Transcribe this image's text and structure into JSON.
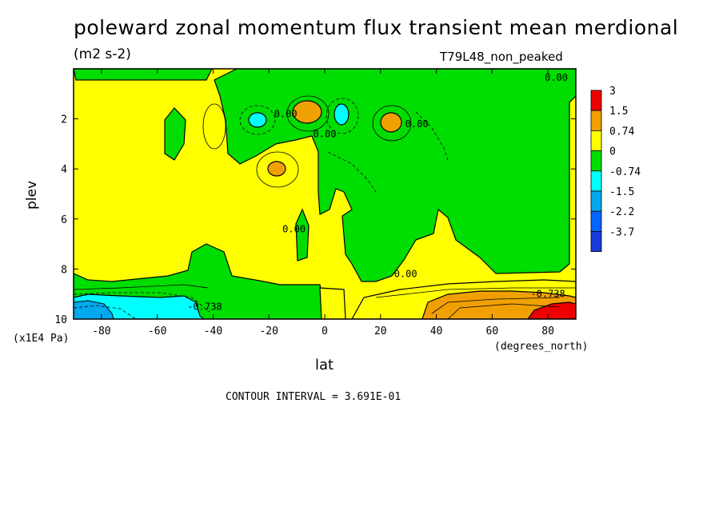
{
  "chart_data": {
    "type": "heatmap",
    "title": "poleward zonal momentum flux transient mean merdional",
    "units": "(m2 s-2)",
    "run_label": "T79L48_non_peaked",
    "xlabel": "lat",
    "ylabel": "plev",
    "x_units": "(degrees_north)",
    "y_units": "(x1E4 Pa)",
    "xlim": [
      -90,
      90
    ],
    "ylim": [
      10,
      0
    ],
    "x_ticks": [
      "-80",
      "-60",
      "-40",
      "-20",
      "0",
      "20",
      "40",
      "60",
      "80"
    ],
    "x_tick_values": [
      -80,
      -60,
      -40,
      -20,
      0,
      20,
      40,
      60,
      80
    ],
    "y_ticks": [
      "2",
      "4",
      "6",
      "8",
      "10"
    ],
    "y_tick_values": [
      2,
      4,
      6,
      8,
      10
    ],
    "contour_interval_text": "CONTOUR INTERVAL = 3.691E-01",
    "contour_labels": [
      {
        "text": "0.00",
        "lat": 83,
        "plev": 0.35
      },
      {
        "text": "0.00",
        "lat": -14,
        "plev": 1.8
      },
      {
        "text": "0.00",
        "lat": 0,
        "plev": 2.6
      },
      {
        "text": "0.00",
        "lat": 33,
        "plev": 2.2
      },
      {
        "text": "0.00",
        "lat": -11,
        "plev": 6.4
      },
      {
        "text": "0.00",
        "lat": 29,
        "plev": 8.2
      },
      {
        "text": "-0.738",
        "lat": -43,
        "plev": 9.5
      },
      {
        "text": "-0.738",
        "lat": 80,
        "plev": 9.0
      }
    ],
    "legend": {
      "labels": [
        "3",
        "1.5",
        "0.74",
        "0",
        "-0.74",
        "-1.5",
        "-2.2",
        "-3.7"
      ],
      "colors": [
        "#ee0000",
        "#f0a000",
        "#ffff00",
        "#00dd00",
        "#00ffff",
        "#00a8ee",
        "#0066ff",
        "#1a3cdd"
      ]
    },
    "regions": [
      {
        "value": "0 to 0.74",
        "color": "#ffff00",
        "lat_range": [
          -90,
          0
        ],
        "plev_range": [
          0.3,
          8.5
        ]
      },
      {
        "value": "-0.74 to 0",
        "color": "#00dd00",
        "lat_range": [
          0,
          90
        ],
        "plev_range": [
          0.2,
          8.0
        ]
      },
      {
        "value": "0.74 to 1.5",
        "color": "#f0a000",
        "lat": -3,
        "plev": 1.9
      },
      {
        "value": "0.74 to 1.5",
        "color": "#f0a000",
        "lat": -17,
        "plev": 4.0
      },
      {
        "value": "0.74 to 1.5",
        "color": "#f0a000",
        "lat": 24,
        "plev": 2.3
      },
      {
        "value": "0.74 to 1.5",
        "color": "#f0a000",
        "lat": 60,
        "plev": 9.5
      },
      {
        "value": "1.5 to 3",
        "color": "#ee0000",
        "lat": 82,
        "plev": 9.7
      },
      {
        "value": "-1.5 to -0.74",
        "color": "#00ffff",
        "lat": -25,
        "plev": 2.2
      },
      {
        "value": "-1.5 to -0.74",
        "color": "#00ffff",
        "lat": 6,
        "plev": 2.0
      },
      {
        "value": "-1.5 to -0.74",
        "color": "#00ffff",
        "lat": -65,
        "plev": 9.6
      },
      {
        "value": "-2.2 to -1.5",
        "color": "#00a8ee",
        "lat": -83,
        "plev": 9.8
      }
    ]
  }
}
